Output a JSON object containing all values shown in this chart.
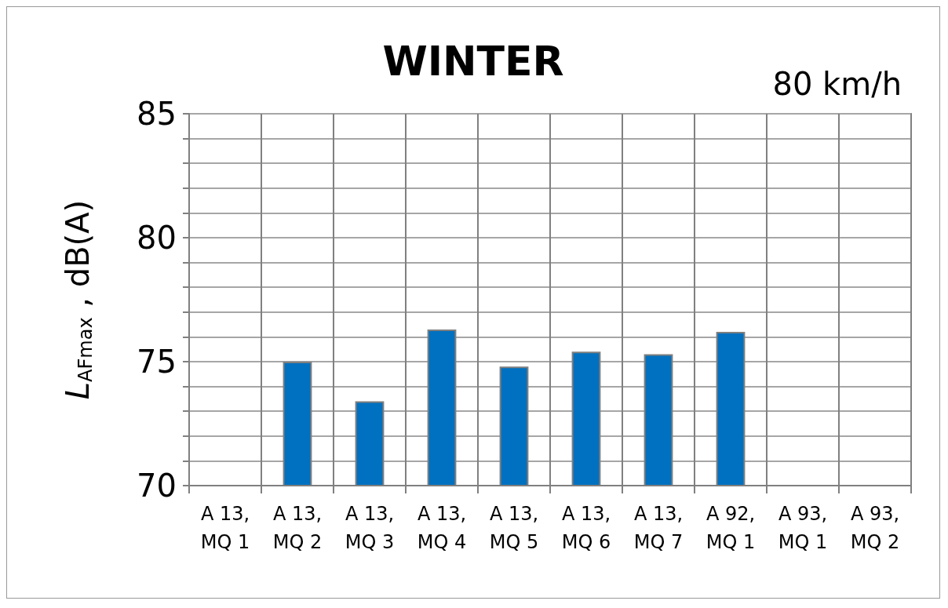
{
  "chart_data": {
    "type": "bar",
    "title": "WINTER",
    "annotations": [
      "80 km/h"
    ],
    "ylabel": "L$_{AFmax}$ , dB(A)",
    "categories": [
      "A 13,\nMQ 1",
      "A 13,\nMQ 2",
      "A 13,\nMQ 3",
      "A 13,\nMQ 4",
      "A 13,\nMQ 5",
      "A 13,\nMQ 6",
      "A 13,\nMQ 7",
      "A 92,\nMQ 1",
      "A 93,\nMQ 1",
      "A 93,\nMQ 2"
    ],
    "values": [
      null,
      75.0,
      73.4,
      76.3,
      74.8,
      75.4,
      75.3,
      76.2,
      null,
      null
    ],
    "color": "#0070c0",
    "ylim": [
      70,
      85
    ],
    "yticks": [
      70,
      {
        "value": 71,
        "label": null
      },
      {
        "value": 72,
        "label": null
      },
      {
        "value": 73,
        "label": null
      },
      {
        "value": 74,
        "label": null
      },
      75,
      {
        "value": 76,
        "label": null
      },
      {
        "value": 77,
        "label": null
      },
      {
        "value": 78,
        "label": null
      },
      {
        "value": 79,
        "label": null
      },
      80,
      {
        "value": 81,
        "label": null
      },
      {
        "value": 82,
        "label": null
      },
      {
        "value": 83,
        "label": null
      },
      {
        "value": 84,
        "label": null
      },
      85
    ],
    "grid": true
  }
}
